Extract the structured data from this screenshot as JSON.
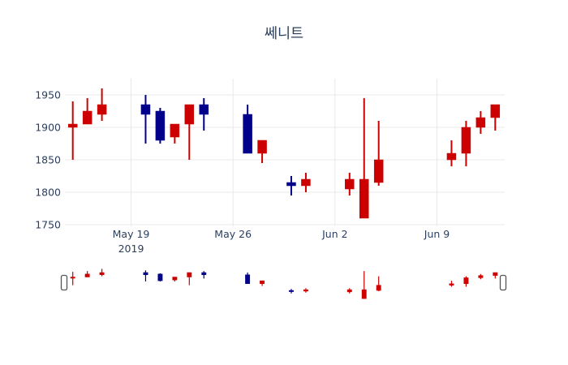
{
  "title": "쎄니트",
  "colors": {
    "increasing": "#cc0000",
    "decreasing": "#00008b",
    "gridline": "#e8e8e8",
    "text": "#2a3f5f",
    "background": "#ffffff"
  },
  "chart_data": {
    "type": "candlestick",
    "title": "쎄니트",
    "legend": "none",
    "grid": true,
    "ylabel": "",
    "xlabel": "",
    "y_ticks": [
      1750,
      1800,
      1850,
      1900,
      1950
    ],
    "y_range": [
      1748,
      1975
    ],
    "x_ticks": [
      {
        "label": "May 19",
        "sublabel": "2019",
        "date": "2019-05-19"
      },
      {
        "label": "May 26",
        "sublabel": "",
        "date": "2019-05-26"
      },
      {
        "label": "Jun 2",
        "sublabel": "",
        "date": "2019-06-02"
      },
      {
        "label": "Jun 9",
        "sublabel": "",
        "date": "2019-06-09"
      }
    ],
    "candles": [
      {
        "date": "2019-05-15",
        "open": 1900,
        "high": 1940,
        "low": 1850,
        "close": 1905
      },
      {
        "date": "2019-05-16",
        "open": 1905,
        "high": 1945,
        "low": 1905,
        "close": 1925
      },
      {
        "date": "2019-05-17",
        "open": 1920,
        "high": 1960,
        "low": 1910,
        "close": 1935
      },
      {
        "date": "2019-05-20",
        "open": 1935,
        "high": 1950,
        "low": 1875,
        "close": 1920
      },
      {
        "date": "2019-05-21",
        "open": 1925,
        "high": 1930,
        "low": 1875,
        "close": 1880
      },
      {
        "date": "2019-05-22",
        "open": 1885,
        "high": 1905,
        "low": 1875,
        "close": 1905
      },
      {
        "date": "2019-05-23",
        "open": 1905,
        "high": 1935,
        "low": 1850,
        "close": 1935
      },
      {
        "date": "2019-05-24",
        "open": 1935,
        "high": 1945,
        "low": 1895,
        "close": 1920
      },
      {
        "date": "2019-05-27",
        "open": 1920,
        "high": 1935,
        "low": 1860,
        "close": 1860
      },
      {
        "date": "2019-05-28",
        "open": 1860,
        "high": 1880,
        "low": 1845,
        "close": 1880
      },
      {
        "date": "2019-05-30",
        "open": 1815,
        "high": 1825,
        "low": 1795,
        "close": 1810
      },
      {
        "date": "2019-05-31",
        "open": 1810,
        "high": 1830,
        "low": 1800,
        "close": 1820
      },
      {
        "date": "2019-06-03",
        "open": 1805,
        "high": 1830,
        "low": 1795,
        "close": 1820
      },
      {
        "date": "2019-06-04",
        "open": 1760,
        "high": 1945,
        "low": 1760,
        "close": 1820
      },
      {
        "date": "2019-06-05",
        "open": 1815,
        "high": 1910,
        "low": 1810,
        "close": 1850
      },
      {
        "date": "2019-06-10",
        "open": 1850,
        "high": 1880,
        "low": 1840,
        "close": 1860
      },
      {
        "date": "2019-06-11",
        "open": 1860,
        "high": 1910,
        "low": 1840,
        "close": 1900
      },
      {
        "date": "2019-06-12",
        "open": 1900,
        "high": 1925,
        "low": 1890,
        "close": 1915
      },
      {
        "date": "2019-06-13",
        "open": 1915,
        "high": 1935,
        "low": 1895,
        "close": 1935
      }
    ],
    "rangeslider": {
      "visible": true,
      "y_range": [
        1750,
        1965
      ]
    }
  }
}
